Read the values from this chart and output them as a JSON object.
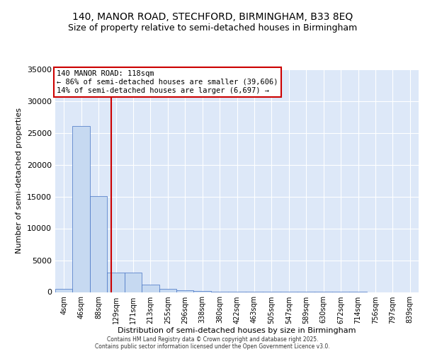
{
  "title": "140, MANOR ROAD, STECHFORD, BIRMINGHAM, B33 8EQ",
  "subtitle": "Size of property relative to semi-detached houses in Birmingham",
  "xlabel": "Distribution of semi-detached houses by size in Birmingham",
  "ylabel": "Number of semi-detached properties",
  "bin_labels": [
    "4sqm",
    "46sqm",
    "88sqm",
    "129sqm",
    "171sqm",
    "213sqm",
    "255sqm",
    "296sqm",
    "338sqm",
    "380sqm",
    "422sqm",
    "463sqm",
    "505sqm",
    "547sqm",
    "589sqm",
    "630sqm",
    "672sqm",
    "714sqm",
    "756sqm",
    "797sqm",
    "839sqm"
  ],
  "bar_heights": [
    500,
    26100,
    15100,
    3050,
    3100,
    1150,
    480,
    280,
    120,
    60,
    30,
    20,
    10,
    5,
    3,
    2,
    1,
    1,
    0,
    0,
    0
  ],
  "bar_color": "#c6d9f1",
  "bar_edge_color": "#4472c4",
  "red_line_x": 2.72,
  "annotation_text": "140 MANOR ROAD: 118sqm\n← 86% of semi-detached houses are smaller (39,606)\n14% of semi-detached houses are larger (6,697) →",
  "annotation_box_color": "#ffffff",
  "annotation_box_edge": "#cc0000",
  "ylim": [
    0,
    35000
  ],
  "yticks": [
    0,
    5000,
    10000,
    15000,
    20000,
    25000,
    30000,
    35000
  ],
  "bg_color": "#dde8f8",
  "footer1": "Contains HM Land Registry data © Crown copyright and database right 2025.",
  "footer2": "Contains public sector information licensed under the Open Government Licence v3.0."
}
